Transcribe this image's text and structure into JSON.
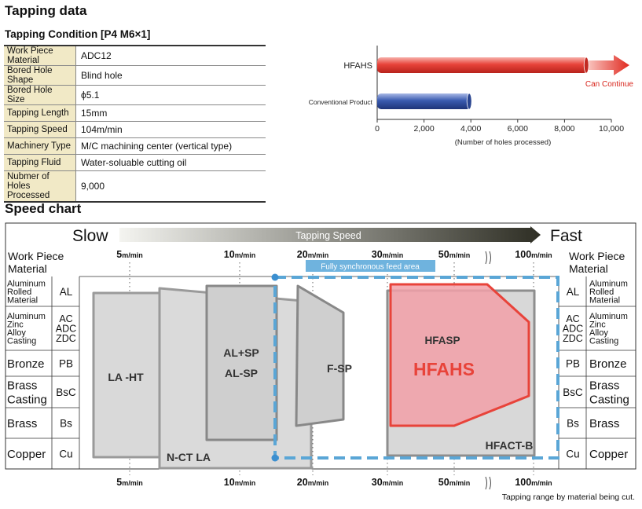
{
  "title": "Tapping data",
  "condition_title": "Tapping Condition [P4 M6×1]",
  "conditions": [
    {
      "key": "Work Piece Material",
      "value": "ADC12"
    },
    {
      "key": "Bored Hole Shape",
      "value": "Blind hole"
    },
    {
      "key": "Bored Hole Size",
      "value": "ϕ5.1"
    },
    {
      "key": "Tapping Length",
      "value": "15mm"
    },
    {
      "key": "Tapping Speed",
      "value": "104m/min"
    },
    {
      "key": "Machinery Type",
      "value": "M/C machining center (vertical type)"
    },
    {
      "key": "Tapping Fluid",
      "value": "Water-soluable cutting oil"
    },
    {
      "key": "Nubmer of Holes Processed",
      "value": "9,000"
    }
  ],
  "speed_title": "Speed chart",
  "chart_data": [
    {
      "type": "bar",
      "orientation": "horizontal",
      "categories": [
        "HFAHS",
        "Conventional Product"
      ],
      "values": [
        9000,
        4000
      ],
      "colors": [
        "#e8433a",
        "#3a5bb0"
      ],
      "xlim": [
        0,
        10000
      ],
      "xticks": [
        "0",
        "2,000",
        "4,000",
        "6,000",
        "8,000",
        "10,000"
      ],
      "xlabel": "(Number of holes processed)",
      "annotation": "Can Continue"
    },
    {
      "type": "range",
      "slow_label": "Slow",
      "fast_label": "Fast",
      "speed_axis_label": "Tapping Speed",
      "material_header": "Work Piece Material",
      "speed_ticks": [
        "5m/min",
        "10m/min",
        "20m/min",
        "30m/min",
        "50m/min",
        "100m/min"
      ],
      "materials": [
        {
          "name": "Aluminum Rolled Material",
          "code": "AL"
        },
        {
          "name": "Aluminum Zinc Alloy Casting",
          "code": "AC ADC ZDC"
        },
        {
          "name": "Bronze",
          "code": "PB"
        },
        {
          "name": "Brass Casting",
          "code": "BsC"
        },
        {
          "name": "Brass",
          "code": "Bs"
        },
        {
          "name": "Copper",
          "code": "Cu"
        }
      ],
      "ranges": [
        "LA-HT",
        "N-CT LA",
        "AL+SP",
        "AL-SP",
        "F-SP",
        "HFASP",
        "HFAHS",
        "HFACT-B"
      ],
      "highlight_color": "#e8433a",
      "sync_area_label": "Fully synchronous feed area",
      "footnote": "Tapping range by material being cut."
    }
  ]
}
